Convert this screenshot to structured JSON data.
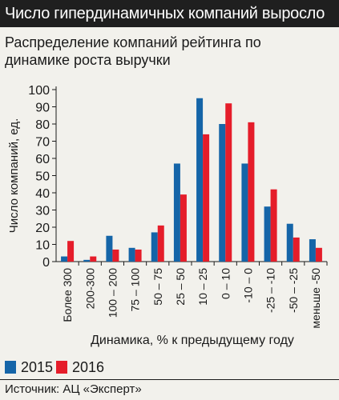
{
  "header": {
    "title": "Число гипердинамичных компаний выросло"
  },
  "colors": {
    "series_2015": "#1565a8",
    "series_2016": "#e51d2a",
    "header_bg": "#1f1f1f",
    "background": "#f2f1ec"
  },
  "chart_data": {
    "type": "bar",
    "title": "Распределение компаний рейтинга по динамике роста выручки",
    "xlabel": "Динамика, % к предыдущему году",
    "ylabel": "Число компаний, ед.",
    "ylim": [
      0,
      100
    ],
    "yticks": [
      0,
      10,
      20,
      30,
      40,
      50,
      60,
      70,
      80,
      90,
      100
    ],
    "grid": false,
    "legend_position": "bottom-left",
    "categories": [
      "Более 300",
      "200-300",
      "100 – 200",
      "75 – 100",
      "50 – 75",
      "25 – 50",
      "10 – 25",
      "0 – 10",
      "-10 – 0",
      "-25 – -10",
      "-50 – -25",
      "меньше -50"
    ],
    "series": [
      {
        "name": "2015",
        "values": [
          3,
          1,
          15,
          8,
          17,
          57,
          95,
          80,
          57,
          32,
          22,
          13
        ]
      },
      {
        "name": "2016",
        "values": [
          12,
          3,
          7,
          7,
          21,
          39,
          74,
          92,
          81,
          42,
          14,
          8
        ]
      }
    ]
  },
  "footer": {
    "source": "Источник: АЦ «Эксперт»"
  }
}
